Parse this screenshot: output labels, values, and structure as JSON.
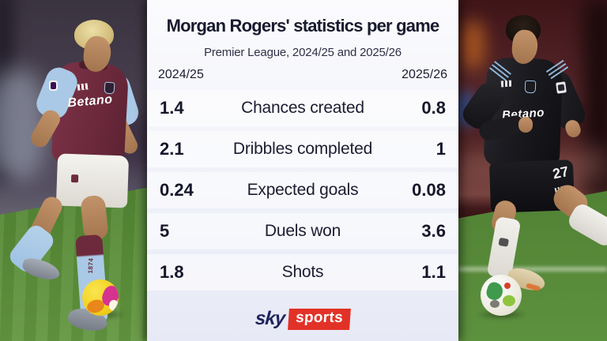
{
  "panel": {
    "title": "Morgan Rogers' statistics per game",
    "subtitle": "Premier League, 2024/25 and 2025/26",
    "season_left": "2024/25",
    "season_right": "2025/26",
    "rows": [
      {
        "left": "1.4",
        "label": "Chances created",
        "right": "0.8"
      },
      {
        "left": "2.1",
        "label": "Dribbles completed",
        "right": "1"
      },
      {
        "left": "0.24",
        "label": "Expected goals",
        "right": "0.08"
      },
      {
        "left": "5",
        "label": "Duels won",
        "right": "3.6"
      },
      {
        "left": "1.8",
        "label": "Shots",
        "right": "1.1"
      }
    ],
    "brand": {
      "sky": "sky",
      "sports": "sports"
    }
  },
  "photo_left": {
    "description": "Morgan Rogers in claret Aston Villa home kit dribbling a yellow ball",
    "shirt_sponsor": "Betano",
    "sock_text": "1874"
  },
  "photo_right": {
    "description": "Morgan Rogers in black Aston Villa away kit dribbling a white ball",
    "shirt_sponsor": "Betano",
    "shorts_number": "27"
  },
  "colors": {
    "claret": "#6d2a3c",
    "sleeve_blue": "#a9c9e6",
    "navy_text": "#191a2e",
    "sky_red": "#e23227",
    "panel_top": "#fbfbfe",
    "panel_bottom": "#e7e9f6",
    "pitch_green": "#568a36"
  }
}
